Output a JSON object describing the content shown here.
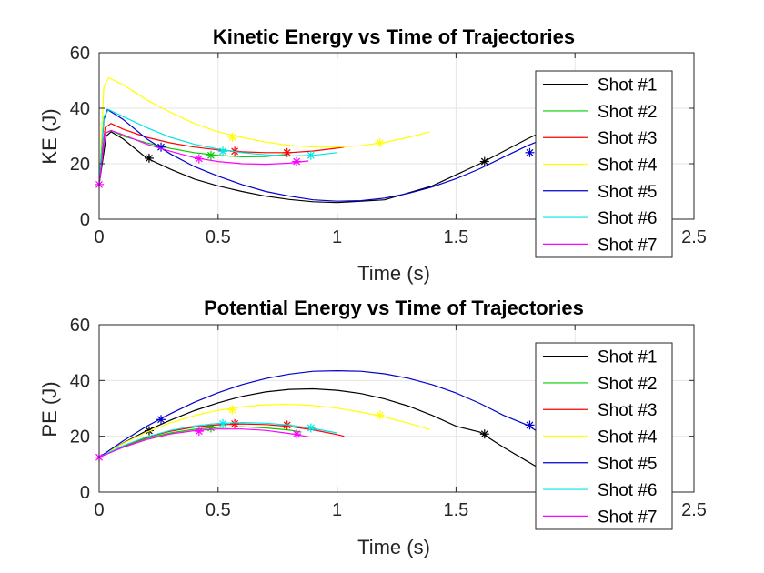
{
  "chart_data": [
    {
      "type": "line",
      "title": "Kinetic Energy vs Time of Trajectories",
      "xlabel": "Time (s)",
      "ylabel": "KE (J)",
      "xlim": [
        0,
        2.5
      ],
      "ylim": [
        0,
        60
      ],
      "xticks": [
        "0",
        "0.5",
        "1",
        "1.5",
        "2",
        "2.5"
      ],
      "yticks": [
        "0",
        "20",
        "40",
        "60"
      ],
      "grid": true,
      "legend_position": "top-right",
      "series": [
        {
          "name": "Shot #1",
          "color": "#000000",
          "x": [
            0,
            0.03,
            0.05,
            0.1,
            0.2,
            0.3,
            0.4,
            0.5,
            0.6,
            0.7,
            0.8,
            0.9,
            1.0,
            1.2,
            1.4,
            1.6,
            1.8,
            1.9
          ],
          "y": [
            12.5,
            30,
            31.5,
            29,
            22,
            18,
            14.5,
            12,
            10,
            8.3,
            7.1,
            6.3,
            6,
            7,
            12,
            20,
            29,
            33
          ],
          "markers": [
            [
              0.21,
              22
            ],
            [
              1.62,
              20.8
            ]
          ]
        },
        {
          "name": "Shot #2",
          "color": "#00cc00",
          "x": [
            0,
            0.025,
            0.05,
            0.1,
            0.2,
            0.3,
            0.4,
            0.5,
            0.6,
            0.7,
            0.8
          ],
          "y": [
            12.5,
            31,
            32,
            30,
            27.5,
            25.5,
            24,
            23,
            22.5,
            22.6,
            23.5
          ],
          "markers": [
            [
              0.47,
              23
            ]
          ]
        },
        {
          "name": "Shot #3",
          "color": "#ff0000",
          "x": [
            0,
            0.025,
            0.05,
            0.1,
            0.2,
            0.3,
            0.4,
            0.5,
            0.6,
            0.7,
            0.8,
            0.9,
            1.0,
            1.03
          ],
          "y": [
            12.5,
            33,
            34.5,
            32.5,
            29.5,
            27.5,
            26,
            25,
            24.3,
            24,
            24,
            24.6,
            25.6,
            26
          ],
          "markers": [
            [
              0.57,
              24.5
            ],
            [
              0.79,
              24
            ]
          ]
        },
        {
          "name": "Shot #4",
          "color": "#ffff00",
          "x": [
            0,
            0.02,
            0.04,
            0.1,
            0.2,
            0.3,
            0.4,
            0.5,
            0.6,
            0.7,
            0.8,
            0.9,
            1.0,
            1.1,
            1.2,
            1.3,
            1.39
          ],
          "y": [
            12.5,
            48,
            51,
            48.5,
            43,
            38.5,
            34.5,
            31.5,
            29.5,
            27.8,
            26.6,
            26,
            26,
            26.5,
            27.7,
            29.5,
            31.5
          ],
          "markers": [
            [
              0.56,
              29.5
            ],
            [
              1.18,
              27.5
            ]
          ]
        },
        {
          "name": "Shot #5",
          "color": "#0000cc",
          "x": [
            0,
            0.02,
            0.035,
            0.1,
            0.2,
            0.3,
            0.4,
            0.5,
            0.6,
            0.7,
            0.8,
            0.9,
            1.0,
            1.1,
            1.2,
            1.3,
            1.4,
            1.5,
            1.6,
            1.7,
            1.8,
            1.9
          ],
          "y": [
            12.5,
            36,
            39.5,
            36,
            29,
            23.5,
            19,
            15.5,
            12.5,
            10,
            8.3,
            7,
            6.5,
            6.7,
            7.6,
            9.3,
            11.6,
            14.6,
            18.2,
            22.4,
            26.5,
            30
          ],
          "markers": [
            [
              0.26,
              26
            ],
            [
              1.81,
              24
            ]
          ]
        },
        {
          "name": "Shot #6",
          "color": "#00e5e5",
          "x": [
            0,
            0.02,
            0.04,
            0.1,
            0.2,
            0.3,
            0.4,
            0.5,
            0.6,
            0.7,
            0.8,
            0.9,
            1.0
          ],
          "y": [
            12.5,
            37,
            39.5,
            37,
            33,
            29.5,
            27,
            25.3,
            24,
            23.2,
            22.8,
            23,
            24
          ],
          "markers": [
            [
              0.52,
              24.5
            ],
            [
              0.89,
              23
            ]
          ]
        },
        {
          "name": "Shot #7",
          "color": "#ff00ff",
          "x": [
            0,
            0.025,
            0.05,
            0.1,
            0.2,
            0.3,
            0.4,
            0.5,
            0.6,
            0.7,
            0.8,
            0.88
          ],
          "y": [
            12.5,
            31,
            32,
            30.5,
            27,
            24.5,
            22.2,
            20.8,
            20,
            19.8,
            20.2,
            21
          ],
          "markers": [
            [
              0.0,
              12.5
            ],
            [
              0.42,
              21.8
            ],
            [
              0.83,
              20.8
            ]
          ]
        }
      ],
      "legend": [
        "Shot #1",
        "Shot #2",
        "Shot #3",
        "Shot #4",
        "Shot #5",
        "Shot #6",
        "Shot #7"
      ]
    },
    {
      "type": "line",
      "title": "Potential Energy vs Time of Trajectories",
      "xlabel": "Time (s)",
      "ylabel": "PE (J)",
      "xlim": [
        0,
        2.5
      ],
      "ylim": [
        0,
        60
      ],
      "xticks": [
        "0",
        "0.5",
        "1",
        "1.5",
        "2",
        "2.5"
      ],
      "yticks": [
        "0",
        "20",
        "40",
        "60"
      ],
      "grid": true,
      "legend_position": "top-right",
      "series": [
        {
          "name": "Shot #1",
          "color": "#000000",
          "x": [
            0,
            0.1,
            0.2,
            0.3,
            0.4,
            0.5,
            0.6,
            0.7,
            0.8,
            0.9,
            1.0,
            1.1,
            1.2,
            1.3,
            1.4,
            1.5,
            1.6,
            1.7,
            1.8,
            1.9
          ],
          "y": [
            12.5,
            17.5,
            22,
            25.8,
            29.2,
            32,
            34.3,
            35.9,
            36.8,
            37,
            36.5,
            35.3,
            33.4,
            30.8,
            27.5,
            23.6,
            21.5,
            16,
            11,
            6
          ],
          "markers": [
            [
              0.21,
              22
            ],
            [
              1.62,
              20.8
            ]
          ]
        },
        {
          "name": "Shot #2",
          "color": "#00cc00",
          "x": [
            0,
            0.1,
            0.2,
            0.3,
            0.4,
            0.5,
            0.6,
            0.7,
            0.8,
            0.85
          ],
          "y": [
            12.5,
            16.3,
            19.2,
            21.2,
            22.5,
            23.2,
            23.4,
            23,
            22.2,
            21.5
          ],
          "markers": [
            [
              0.47,
              23
            ]
          ]
        },
        {
          "name": "Shot #3",
          "color": "#ff0000",
          "x": [
            0,
            0.1,
            0.2,
            0.3,
            0.4,
            0.5,
            0.6,
            0.7,
            0.8,
            0.9,
            1.0,
            1.03
          ],
          "y": [
            12.5,
            16.5,
            19.6,
            21.8,
            23.3,
            24.1,
            24.4,
            24.2,
            23.5,
            22.3,
            20.6,
            20
          ],
          "markers": [
            [
              0.57,
              24.5
            ],
            [
              0.79,
              24
            ]
          ]
        },
        {
          "name": "Shot #4",
          "color": "#ffff00",
          "x": [
            0,
            0.1,
            0.2,
            0.3,
            0.4,
            0.5,
            0.6,
            0.7,
            0.8,
            0.9,
            1.0,
            1.1,
            1.2,
            1.3,
            1.39
          ],
          "y": [
            12.5,
            17.4,
            21.5,
            24.8,
            27.4,
            29.3,
            30.6,
            31.3,
            31.4,
            31,
            30.1,
            28.7,
            26.9,
            24.7,
            22.4
          ],
          "markers": [
            [
              0.56,
              29.5
            ],
            [
              1.18,
              27.5
            ]
          ]
        },
        {
          "name": "Shot #5",
          "color": "#0000cc",
          "x": [
            0,
            0.1,
            0.2,
            0.3,
            0.4,
            0.5,
            0.6,
            0.7,
            0.8,
            0.9,
            1.0,
            1.1,
            1.2,
            1.3,
            1.4,
            1.5,
            1.6,
            1.7,
            1.8,
            1.9
          ],
          "y": [
            12.5,
            18.3,
            23.6,
            28.1,
            32.2,
            35.6,
            38.5,
            40.7,
            42.3,
            43.3,
            43.5,
            43.3,
            42.4,
            40.8,
            38.5,
            35.5,
            31.8,
            27.5,
            24,
            18.5
          ],
          "markers": [
            [
              0.26,
              26
            ],
            [
              1.81,
              24
            ]
          ]
        },
        {
          "name": "Shot #6",
          "color": "#00e5e5",
          "x": [
            0,
            0.1,
            0.2,
            0.3,
            0.4,
            0.5,
            0.6,
            0.7,
            0.8,
            0.9,
            1.0
          ],
          "y": [
            12.5,
            16.6,
            19.8,
            22.1,
            23.7,
            24.6,
            24.9,
            24.7,
            24,
            22.8,
            21.2
          ],
          "markers": [
            [
              0.52,
              24.5
            ],
            [
              0.89,
              23
            ]
          ]
        },
        {
          "name": "Shot #7",
          "color": "#ff00ff",
          "x": [
            0,
            0.1,
            0.2,
            0.3,
            0.4,
            0.5,
            0.6,
            0.7,
            0.8,
            0.88
          ],
          "y": [
            12.5,
            16,
            18.8,
            20.8,
            22,
            22.6,
            22.6,
            22.1,
            21,
            19.8
          ],
          "markers": [
            [
              0.0,
              12.5
            ],
            [
              0.42,
              21.8
            ],
            [
              0.83,
              20.8
            ]
          ]
        }
      ],
      "legend": [
        "Shot #1",
        "Shot #2",
        "Shot #3",
        "Shot #4",
        "Shot #5",
        "Shot #6",
        "Shot #7"
      ]
    }
  ]
}
